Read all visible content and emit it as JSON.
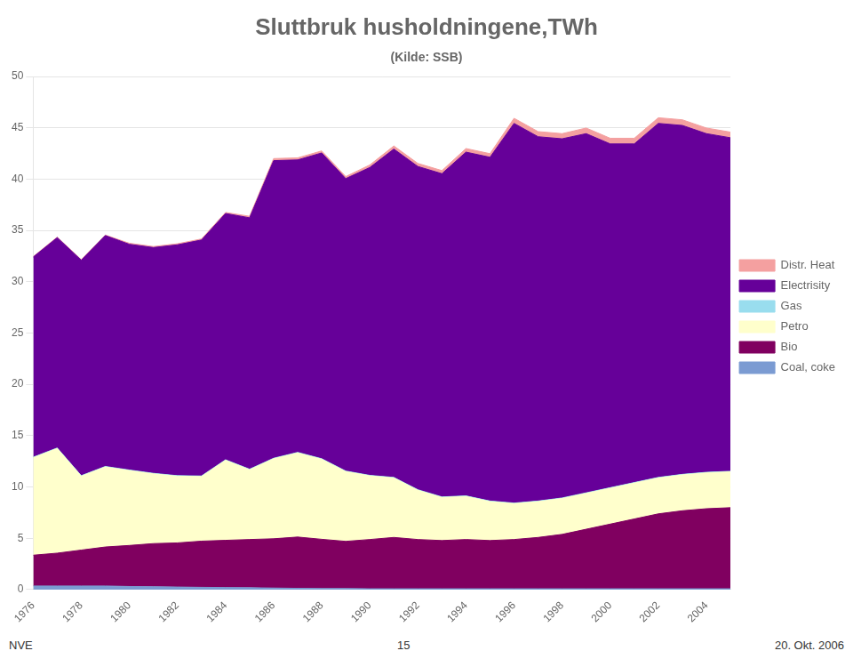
{
  "chart_data": {
    "type": "area",
    "stacked": true,
    "title": "Sluttbruk husholdningene,TWh",
    "subtitle": "(Kilde: SSB)",
    "annotations": [
      "NVE",
      "15",
      "20. Okt. 2006"
    ],
    "x": [
      1976,
      1977,
      1978,
      1979,
      1980,
      1981,
      1982,
      1983,
      1984,
      1985,
      1986,
      1987,
      1988,
      1989,
      1990,
      1991,
      1992,
      1993,
      1994,
      1995,
      1996,
      1997,
      1998,
      1999,
      2000,
      2001,
      2002,
      2003,
      2004,
      2005
    ],
    "series": [
      {
        "name": "Coal, coke",
        "color": "#7B9BD2",
        "values": [
          0.35,
          0.35,
          0.35,
          0.35,
          0.3,
          0.28,
          0.25,
          0.22,
          0.2,
          0.18,
          0.15,
          0.12,
          0.1,
          0.1,
          0.08,
          0.08,
          0.08,
          0.08,
          0.08,
          0.08,
          0.08,
          0.08,
          0.08,
          0.08,
          0.08,
          0.08,
          0.08,
          0.08,
          0.08,
          0.08
        ]
      },
      {
        "name": "Bio",
        "color": "#800060",
        "values": [
          3.0,
          3.2,
          3.5,
          3.8,
          4.0,
          4.2,
          4.3,
          4.5,
          4.6,
          4.7,
          4.8,
          5.0,
          4.8,
          4.6,
          4.8,
          5.0,
          4.8,
          4.7,
          4.8,
          4.7,
          4.8,
          5.0,
          5.3,
          5.8,
          6.3,
          6.8,
          7.3,
          7.6,
          7.8,
          7.9
        ]
      },
      {
        "name": "Petro",
        "color": "#FFFFCC",
        "values": [
          9.5,
          10.2,
          7.2,
          7.8,
          7.3,
          6.8,
          6.5,
          6.3,
          7.8,
          6.8,
          7.8,
          8.2,
          7.8,
          6.8,
          6.2,
          5.8,
          4.8,
          4.2,
          4.2,
          3.8,
          3.5,
          3.5,
          3.5,
          3.5,
          3.5,
          3.5,
          3.5,
          3.5,
          3.5,
          3.5
        ]
      },
      {
        "name": "Gas",
        "color": "#99DDEE",
        "values": [
          0.05,
          0.05,
          0.05,
          0.05,
          0.05,
          0.05,
          0.05,
          0.05,
          0.05,
          0.05,
          0.05,
          0.05,
          0.05,
          0.05,
          0.05,
          0.05,
          0.05,
          0.05,
          0.05,
          0.05,
          0.05,
          0.05,
          0.05,
          0.05,
          0.05,
          0.05,
          0.05,
          0.05,
          0.05,
          0.05
        ]
      },
      {
        "name": "Electrisity",
        "color": "#660099",
        "values": [
          19.5,
          20.5,
          21.0,
          22.5,
          22.0,
          22.0,
          22.5,
          23.0,
          24.0,
          24.5,
          29.0,
          28.5,
          29.8,
          28.5,
          30.0,
          32.0,
          31.5,
          31.5,
          33.5,
          33.5,
          37.0,
          35.5,
          35.0,
          35.0,
          33.5,
          33.0,
          34.5,
          34.0,
          33.0,
          32.5
        ]
      },
      {
        "name": "Distr. Heat",
        "color": "#F4A0A0",
        "values": [
          0.05,
          0.05,
          0.05,
          0.05,
          0.1,
          0.1,
          0.1,
          0.1,
          0.1,
          0.15,
          0.2,
          0.2,
          0.2,
          0.2,
          0.25,
          0.3,
          0.3,
          0.3,
          0.35,
          0.35,
          0.5,
          0.5,
          0.5,
          0.55,
          0.55,
          0.55,
          0.55,
          0.55,
          0.55,
          0.55
        ]
      }
    ],
    "xlim": [
      1976,
      2005
    ],
    "xticks": [
      1976,
      1978,
      1980,
      1982,
      1984,
      1986,
      1988,
      1990,
      1992,
      1994,
      1996,
      1998,
      2000,
      2002,
      2004
    ],
    "ylim": [
      0,
      50
    ],
    "yticks": [
      0,
      5,
      10,
      15,
      20,
      25,
      30,
      35,
      40,
      45,
      50
    ],
    "grid": "y",
    "legend": "right"
  }
}
